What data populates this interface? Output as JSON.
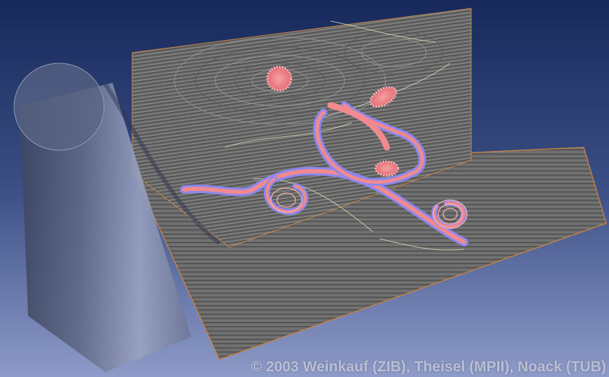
{
  "image": {
    "alt": "3D flow visualization: line integral convolution planes with vortex core lines around a cylinder",
    "copyright": "© 2003 Weinkauf (ZIB), Theisel (MPII), Noack (TUB)"
  },
  "colors": {
    "background_top": "#17295a",
    "background_bottom": "#8a97c5",
    "plane_gray": "#6e6e6e",
    "plane_edge": "#c8864a",
    "vortex_pink": "#f08a8f",
    "vortex_blue": "#8a88f0",
    "cylinder": "#8a92ae"
  }
}
